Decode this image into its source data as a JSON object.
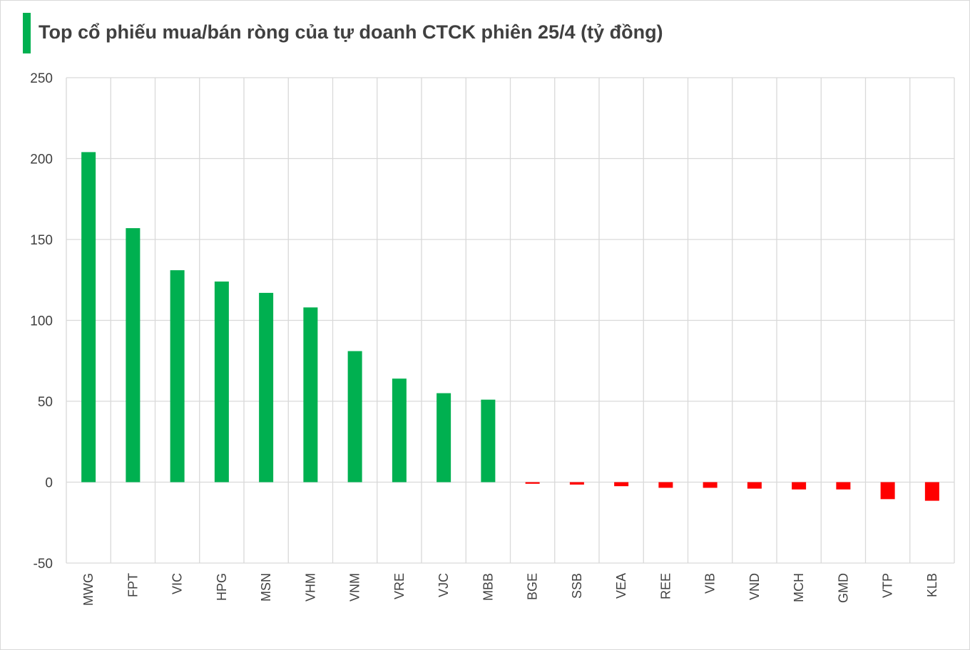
{
  "header": {
    "title": "Top cổ phiếu mua/bán ròng của tự doanh CTCK phiên 25/4 (tỷ đồng)"
  },
  "colors": {
    "positive": "#00b050",
    "negative": "#ff0000",
    "accent_bar": "#00b050",
    "grid": "#d9d9d9"
  },
  "chart_data": {
    "type": "bar",
    "title": "Top cổ phiếu mua/bán ròng của tự doanh CTCK phiên 25/4 (tỷ đồng)",
    "xlabel": "",
    "ylabel": "",
    "ylim": [
      -50,
      250
    ],
    "yticks": [
      -50,
      0,
      50,
      100,
      150,
      200,
      250
    ],
    "grid": true,
    "legend": "none",
    "categories": [
      "MWG",
      "FPT",
      "VIC",
      "HPG",
      "MSN",
      "VHM",
      "VNM",
      "VRE",
      "VJC",
      "MBB",
      "BGE",
      "SSB",
      "VEA",
      "REE",
      "VIB",
      "VND",
      "MCH",
      "GMD",
      "VTP",
      "KLB"
    ],
    "values": [
      204,
      157,
      131,
      124,
      117,
      108,
      81,
      64,
      55,
      51,
      -1,
      -1.5,
      -2.5,
      -3.5,
      -3.5,
      -4,
      -4.5,
      -4.5,
      -10.5,
      -11.5
    ]
  }
}
